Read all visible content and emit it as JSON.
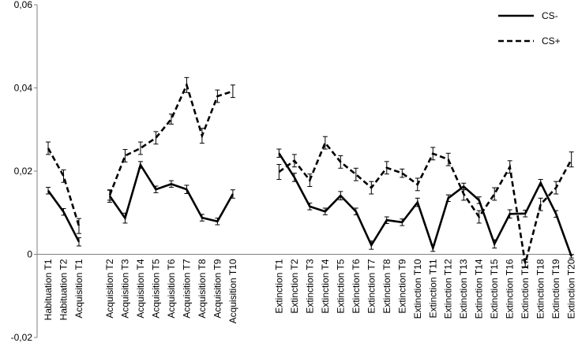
{
  "chart_data": {
    "type": "line",
    "ylim": [
      -0.02,
      0.06
    ],
    "yticks": [
      -0.02,
      0,
      0.02,
      0.04,
      0.06
    ],
    "ytick_labels": [
      "-0,02",
      "0",
      "0,02",
      "0,04",
      "0,06"
    ],
    "grid": false,
    "legend_position": "top-right",
    "categories": [
      "Habituation T1",
      "Habituation T2",
      "Acquisition T1",
      "",
      "Acquisition T2",
      "Acquisition T3",
      "Acquisition T4",
      "Acquisition T5",
      "Acquisition T6",
      "Acquisition T7",
      "Acquisition T8",
      "Acquisition T9",
      "Acquisition T10",
      "",
      "",
      "Extinction T1",
      "Extinction T2",
      "Extinction T3",
      "Extinction T4",
      "Extinction T5",
      "Extinction T6",
      "Extinction T7",
      "Extinction T8",
      "Extinction T9",
      "Extinction T10",
      "Extinction T11",
      "Extinction T12",
      "Extinction T13",
      "Extinction T14",
      "Extinction T15",
      "Extinction T16",
      "Extinction T17",
      "Extinction T18",
      "Extinction T19",
      "Extinction T20"
    ],
    "series": [
      {
        "name": "CS-",
        "dash": "solid",
        "color": "#000000",
        "segments": [
          [
            0,
            2
          ],
          [
            4,
            12
          ],
          [
            15,
            34
          ]
        ],
        "values": [
          0.0153,
          0.0102,
          0.003,
          null,
          0.014,
          0.0087,
          0.0215,
          0.0156,
          0.0169,
          0.0156,
          0.0088,
          0.0079,
          0.0145,
          null,
          null,
          0.0243,
          0.0185,
          0.0115,
          0.0103,
          0.0141,
          0.0103,
          0.0022,
          0.0082,
          0.0077,
          0.0125,
          0.0015,
          0.0135,
          0.0163,
          0.013,
          0.0025,
          0.0097,
          0.0098,
          0.0172,
          0.0097,
          -0.0005
        ],
        "errors": [
          0.0008,
          0.0008,
          0.001,
          null,
          0.0015,
          0.0012,
          0.0008,
          0.0008,
          0.0008,
          0.001,
          0.0008,
          0.0008,
          0.001,
          null,
          null,
          0.001,
          0.001,
          0.0008,
          0.0008,
          0.001,
          0.0008,
          0.001,
          0.0008,
          0.0008,
          0.001,
          0.0008,
          0.0008,
          0.0008,
          0.0008,
          0.001,
          0.001,
          0.0008,
          0.0008,
          0.0008,
          0.0004
        ]
      },
      {
        "name": "CS+",
        "dash": "dashed",
        "color": "#000000",
        "segments": [
          [
            0,
            2
          ],
          [
            4,
            12
          ],
          [
            15,
            34
          ]
        ],
        "values": [
          0.0255,
          0.0188,
          0.0068,
          null,
          0.0142,
          0.0237,
          0.0255,
          0.028,
          0.0325,
          0.0407,
          0.0285,
          0.038,
          0.0392,
          null,
          null,
          0.0198,
          0.0225,
          0.0178,
          0.0268,
          0.0222,
          0.0192,
          0.016,
          0.0208,
          0.0195,
          0.0168,
          0.0242,
          0.0228,
          0.0145,
          0.009,
          0.0145,
          0.021,
          -0.0022,
          0.012,
          0.016,
          0.0228
        ],
        "errors": [
          0.0015,
          0.0015,
          0.0018,
          null,
          0.0012,
          0.0015,
          0.0015,
          0.0015,
          0.0012,
          0.0018,
          0.0018,
          0.0015,
          0.0015,
          null,
          null,
          0.0018,
          0.0015,
          0.0015,
          0.0015,
          0.0015,
          0.0015,
          0.0015,
          0.0015,
          0.001,
          0.0015,
          0.0015,
          0.0015,
          0.0015,
          0.0015,
          0.0015,
          0.0015,
          0.001,
          0.0015,
          0.0015,
          0.0018
        ]
      }
    ]
  }
}
